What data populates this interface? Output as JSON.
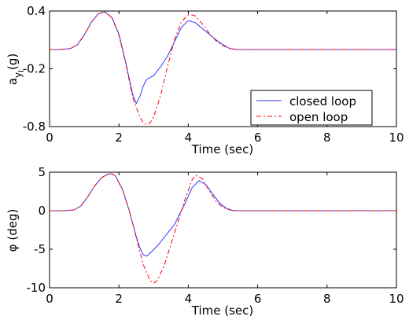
{
  "chart_data": [
    {
      "type": "line",
      "xlabel": "Time (sec)",
      "ylabel": "a",
      "ylabel_sub": "y",
      "ylabel_subsub": "I",
      "ylabel_unit": "(g)",
      "xlim": [
        0,
        10
      ],
      "ylim": [
        -0.8,
        0.4
      ],
      "xticks": [
        "0",
        "2",
        "4",
        "6",
        "8",
        "10"
      ],
      "yticks": [
        "0.4",
        "-0.2",
        "-0.8"
      ],
      "xtick_values": [
        0,
        2,
        4,
        6,
        8,
        10
      ],
      "ytick_values": [
        0.4,
        -0.2,
        -0.8
      ],
      "grid": false,
      "legend_position": "bottom-right",
      "legend": [
        "closed loop",
        "open loop"
      ],
      "series": [
        {
          "name": "closed loop",
          "color": "#3333ff",
          "style": "solid",
          "x": [
            0,
            0.3,
            0.6,
            0.8,
            1.0,
            1.2,
            1.4,
            1.6,
            1.8,
            2.0,
            2.2,
            2.4,
            2.5,
            2.6,
            2.7,
            2.8,
            3.0,
            3.2,
            3.4,
            3.6,
            3.8,
            4.0,
            4.2,
            4.4,
            4.6,
            4.8,
            5.0,
            5.2,
            5.4,
            5.6,
            6.0,
            7.0,
            8.0,
            9.0,
            10.0
          ],
          "y": [
            0.0,
            0.0,
            0.01,
            0.05,
            0.15,
            0.28,
            0.37,
            0.39,
            0.33,
            0.16,
            -0.14,
            -0.47,
            -0.56,
            -0.49,
            -0.38,
            -0.31,
            -0.27,
            -0.18,
            -0.07,
            0.08,
            0.23,
            0.3,
            0.28,
            0.22,
            0.16,
            0.1,
            0.05,
            0.01,
            0.0,
            0.0,
            0.0,
            0.0,
            0.0,
            0.0,
            0.0
          ]
        },
        {
          "name": "open loop",
          "color": "#ff0000",
          "style": "dashdot",
          "x": [
            0,
            0.3,
            0.6,
            0.8,
            1.0,
            1.2,
            1.4,
            1.6,
            1.8,
            2.0,
            2.2,
            2.4,
            2.6,
            2.7,
            2.8,
            2.9,
            3.0,
            3.2,
            3.4,
            3.6,
            3.8,
            4.0,
            4.1,
            4.2,
            4.4,
            4.6,
            4.8,
            5.0,
            5.2,
            5.4,
            5.6,
            6.0,
            7.0,
            8.0,
            9.0,
            10.0
          ],
          "y": [
            0.0,
            0.0,
            0.01,
            0.05,
            0.15,
            0.28,
            0.37,
            0.39,
            0.33,
            0.15,
            -0.15,
            -0.5,
            -0.7,
            -0.76,
            -0.78,
            -0.76,
            -0.7,
            -0.48,
            -0.18,
            0.1,
            0.29,
            0.36,
            0.36,
            0.35,
            0.27,
            0.17,
            0.09,
            0.04,
            0.01,
            0.0,
            0.0,
            0.0,
            0.0,
            0.0,
            0.0,
            0.0
          ]
        }
      ]
    },
    {
      "type": "line",
      "xlabel": "Time (sec)",
      "ylabel": "φ (deg)",
      "xlim": [
        0,
        10
      ],
      "ylim": [
        -10,
        5
      ],
      "xticks": [
        "0",
        "2",
        "4",
        "6",
        "8",
        "10"
      ],
      "yticks": [
        "5",
        "0",
        "-5",
        "-10"
      ],
      "xtick_values": [
        0,
        2,
        4,
        6,
        8,
        10
      ],
      "ytick_values": [
        5,
        0,
        -5,
        -10
      ],
      "grid": false,
      "series": [
        {
          "name": "closed loop",
          "color": "#3333ff",
          "style": "solid",
          "x": [
            0,
            0.4,
            0.7,
            0.9,
            1.1,
            1.3,
            1.5,
            1.7,
            1.8,
            1.9,
            2.1,
            2.3,
            2.5,
            2.6,
            2.7,
            2.8,
            2.9,
            3.1,
            3.3,
            3.6,
            3.9,
            4.1,
            4.3,
            4.5,
            4.7,
            4.9,
            5.1,
            5.3,
            5.5,
            6.0,
            7.0,
            8.0,
            9.0,
            10.0
          ],
          "y": [
            0.0,
            0.0,
            0.1,
            0.6,
            1.8,
            3.2,
            4.3,
            4.8,
            4.8,
            4.5,
            2.8,
            0.0,
            -3.4,
            -4.8,
            -5.7,
            -5.9,
            -5.5,
            -4.6,
            -3.5,
            -1.8,
            0.9,
            2.9,
            3.9,
            3.4,
            2.2,
            1.0,
            0.3,
            0.0,
            0.0,
            0.0,
            0.0,
            0.0,
            0.0,
            0.0
          ]
        },
        {
          "name": "open loop",
          "color": "#ff0000",
          "style": "dashdot",
          "x": [
            0,
            0.4,
            0.7,
            0.9,
            1.1,
            1.3,
            1.5,
            1.7,
            1.8,
            1.9,
            2.1,
            2.3,
            2.5,
            2.7,
            2.9,
            3.0,
            3.1,
            3.3,
            3.5,
            3.7,
            3.9,
            4.1,
            4.2,
            4.4,
            4.6,
            4.8,
            5.0,
            5.2,
            5.4,
            5.6,
            6.0,
            7.0,
            8.0,
            9.0,
            10.0
          ],
          "y": [
            0.0,
            0.0,
            0.1,
            0.6,
            1.8,
            3.2,
            4.3,
            4.8,
            4.8,
            4.5,
            2.8,
            0.0,
            -3.5,
            -7.0,
            -9.1,
            -9.4,
            -9.1,
            -7.2,
            -4.4,
            -1.5,
            1.4,
            3.9,
            4.6,
            4.2,
            2.6,
            1.2,
            0.4,
            0.1,
            0.0,
            0.0,
            0.0,
            0.0,
            0.0,
            0.0,
            0.0
          ]
        }
      ]
    }
  ]
}
